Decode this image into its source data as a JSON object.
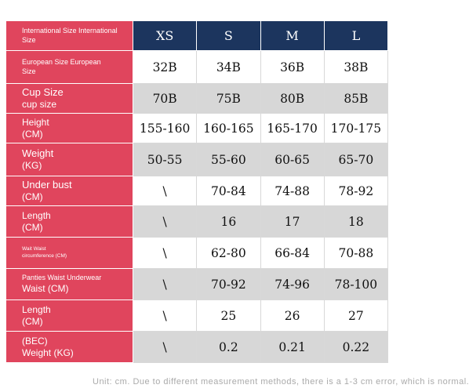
{
  "size_chart": {
    "header": {
      "label_line1": "International Size International",
      "label_line2": "Size",
      "sizes": [
        "XS",
        "S",
        "M",
        "L"
      ]
    },
    "rows": [
      {
        "label_line1": "European Size European",
        "label_line2": "Size",
        "values": [
          "32B",
          "34B",
          "36B",
          "38B"
        ]
      },
      {
        "label_line1": "Cup Size",
        "label_line2": "cup size",
        "values": [
          "70B",
          "75B",
          "80B",
          "85B"
        ]
      },
      {
        "label_line1": "Height",
        "label_line2": "(CM)",
        "values": [
          "155-160",
          "160-165",
          "165-170",
          "170-175"
        ]
      },
      {
        "label_line1": "Weight",
        "label_line2": "(KG)",
        "values": [
          "50-55",
          "55-60",
          "60-65",
          "65-70"
        ]
      },
      {
        "label_line1": "Under bust",
        "label_line2": "(CM)",
        "values": [
          "\\",
          "70-84",
          "74-88",
          "78-92"
        ]
      },
      {
        "label_line1": "Length",
        "label_line2": "(CM)",
        "values": [
          "\\",
          "16",
          "17",
          "18"
        ]
      },
      {
        "label_line1": "Wait Waist",
        "label_line2": "circumference (CM)",
        "values": [
          "\\",
          "62-80",
          "66-84",
          "70-88"
        ]
      },
      {
        "label_line1": "Panties Waist Underwear",
        "label_line2": "Waist (CM)",
        "values": [
          "\\",
          "70-92",
          "74-96",
          "78-100"
        ]
      },
      {
        "label_line1": "Length",
        "label_line2": "(CM)",
        "values": [
          "\\",
          "25",
          "26",
          "27"
        ]
      },
      {
        "label_line1": "(BEC)",
        "label_line2": "Weight (KG)",
        "values": [
          "\\",
          "0.2",
          "0.21",
          "0.22"
        ]
      }
    ]
  },
  "footer": {
    "note": "Unit: cm. Due to different measurement methods, there is a 1-3 cm error, which is normal."
  }
}
